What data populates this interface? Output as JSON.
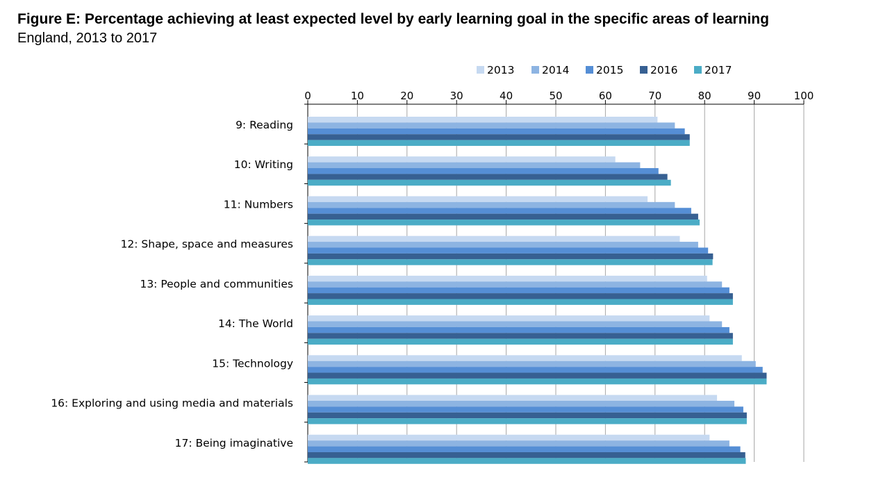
{
  "figure": {
    "title": "Figure E: Percentage achieving at least expected level by early learning goal in the specific areas of learning",
    "subtitle": "England, 2013 to 2017"
  },
  "chart_data": {
    "type": "bar",
    "orientation": "horizontal",
    "x_axis_position": "top",
    "xlim": [
      0,
      100
    ],
    "x_ticks": [
      0,
      10,
      20,
      30,
      40,
      50,
      60,
      70,
      80,
      90,
      100
    ],
    "grid": true,
    "legend_position": "top",
    "categories": [
      "9: Reading",
      "10: Writing",
      "11: Numbers",
      "12: Shape, space and measures",
      "13: People and communities",
      "14: The World",
      "15: Technology",
      "16: Exploring and using media and materials",
      "17: Being imaginative"
    ],
    "series": [
      {
        "name": "2013",
        "color": "#c6d9f1",
        "values": [
          70.5,
          62,
          68.5,
          75,
          80.5,
          81,
          87.5,
          82.5,
          81
        ]
      },
      {
        "name": "2014",
        "color": "#8db4e2",
        "values": [
          74,
          67,
          74,
          78.7,
          83.5,
          83.5,
          90.3,
          86,
          85
        ]
      },
      {
        "name": "2015",
        "color": "#558ed5",
        "values": [
          76,
          70.7,
          77.3,
          80.7,
          85,
          85,
          91.7,
          87.8,
          87.2
        ]
      },
      {
        "name": "2016",
        "color": "#376092",
        "values": [
          77,
          72.5,
          78.7,
          81.7,
          85.7,
          85.7,
          92.5,
          88.5,
          88.2
        ]
      },
      {
        "name": "2017",
        "color": "#4bacc6",
        "values": [
          77,
          73.2,
          79,
          81.6,
          85.7,
          85.7,
          92.5,
          88.5,
          88.3
        ]
      }
    ]
  }
}
